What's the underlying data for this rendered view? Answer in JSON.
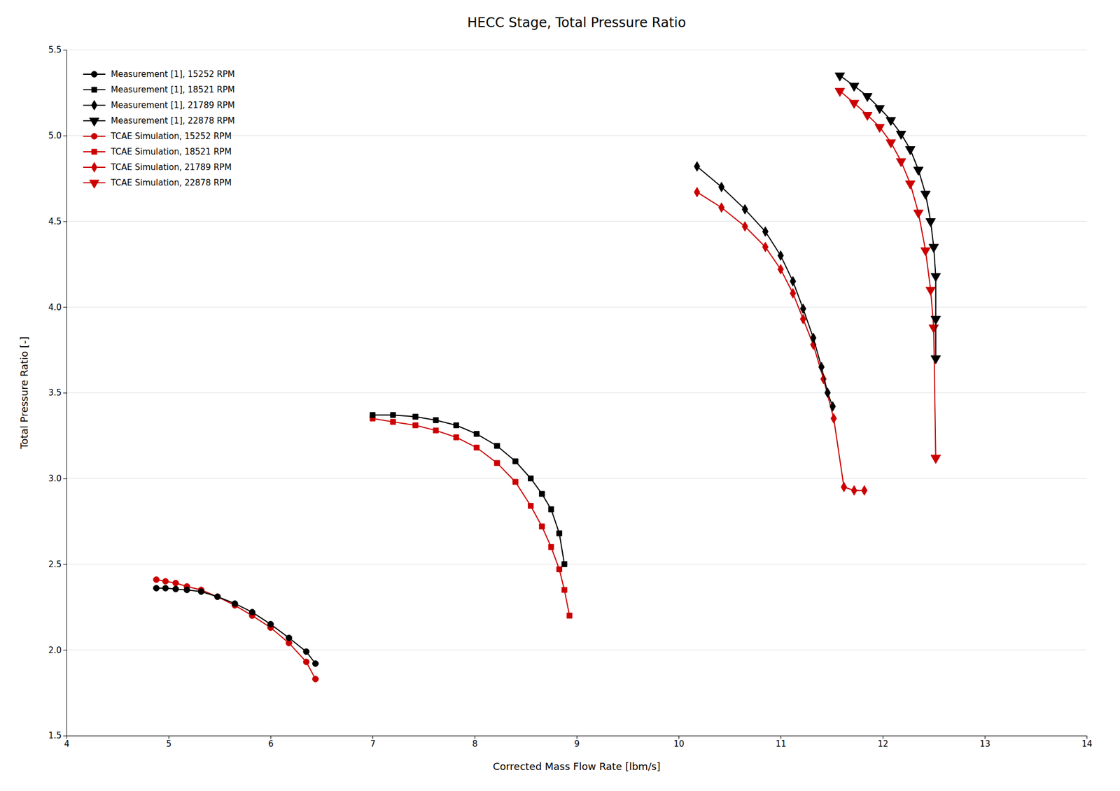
{
  "chart_data": {
    "type": "line",
    "title": "HECC Stage, Total Pressure Ratio",
    "x_label": "Corrected Mass Flow Rate [lbm/s]",
    "y_label": "Total Pressure Ratio [-]",
    "xlim": [
      4,
      14
    ],
    "ylim": [
      1.5,
      5.5
    ],
    "xticks": [
      4,
      5,
      6,
      7,
      8,
      9,
      10,
      11,
      12,
      13,
      14
    ],
    "yticks": [
      1.5,
      {
        "value": 2.0,
        "label": "2.0"
      },
      2.5,
      {
        "value": 3.0,
        "label": "3.0"
      },
      3.5,
      {
        "value": 4.0,
        "label": "4.0"
      },
      4.5,
      {
        "value": 5.0,
        "label": "5.0"
      },
      5.5
    ],
    "grid": "y",
    "legend": "upper left",
    "series": [
      {
        "name": "Measurement [1], 15252 RPM",
        "color": "#000000",
        "marker": "circle",
        "x": [
          4.88,
          4.97,
          5.07,
          5.18,
          5.32,
          5.48,
          5.65,
          5.82,
          6.0,
          6.18,
          6.35,
          6.44
        ],
        "values": [
          2.36,
          2.36,
          2.355,
          2.35,
          2.34,
          2.31,
          2.27,
          2.22,
          2.15,
          2.07,
          1.99,
          1.92
        ]
      },
      {
        "name": "Measurement [1], 18521 RPM",
        "color": "#000000",
        "marker": "square",
        "x": [
          7.0,
          7.2,
          7.42,
          7.62,
          7.82,
          8.02,
          8.22,
          8.4,
          8.55,
          8.66,
          8.75,
          8.83,
          8.88
        ],
        "values": [
          3.37,
          3.37,
          3.36,
          3.34,
          3.31,
          3.26,
          3.19,
          3.1,
          3.0,
          2.91,
          2.82,
          2.68,
          2.5
        ]
      },
      {
        "name": "Measurement [1], 21789 RPM",
        "color": "#000000",
        "marker": "diamond",
        "x": [
          10.18,
          10.42,
          10.65,
          10.85,
          11.0,
          11.12,
          11.22,
          11.32,
          11.4,
          11.46,
          11.51
        ],
        "values": [
          4.82,
          4.7,
          4.57,
          4.44,
          4.3,
          4.15,
          3.99,
          3.82,
          3.65,
          3.5,
          3.42
        ]
      },
      {
        "name": "Measurement [1], 22878 RPM",
        "color": "#000000",
        "marker": "triangle-down",
        "x": [
          11.58,
          11.72,
          11.85,
          11.97,
          12.08,
          12.18,
          12.27,
          12.35,
          12.42,
          12.47,
          12.5,
          12.52,
          12.52,
          12.52
        ],
        "values": [
          5.35,
          5.29,
          5.23,
          5.16,
          5.09,
          5.01,
          4.92,
          4.8,
          4.66,
          4.5,
          4.35,
          4.18,
          3.93,
          3.7
        ]
      },
      {
        "name": "TCAE Simulation, 15252 RPM",
        "color": "#cc0000",
        "marker": "circle",
        "x": [
          4.88,
          4.97,
          5.07,
          5.18,
          5.32,
          5.48,
          5.65,
          5.82,
          6.0,
          6.18,
          6.35,
          6.44
        ],
        "values": [
          2.41,
          2.4,
          2.39,
          2.37,
          2.35,
          2.31,
          2.26,
          2.2,
          2.13,
          2.04,
          1.93,
          1.83
        ]
      },
      {
        "name": "TCAE Simulation, 18521 RPM",
        "color": "#cc0000",
        "marker": "square",
        "x": [
          7.0,
          7.2,
          7.42,
          7.62,
          7.82,
          8.02,
          8.22,
          8.4,
          8.55,
          8.66,
          8.75,
          8.83,
          8.88,
          8.93
        ],
        "values": [
          3.35,
          3.33,
          3.31,
          3.28,
          3.24,
          3.18,
          3.09,
          2.98,
          2.84,
          2.72,
          2.6,
          2.47,
          2.35,
          2.2
        ]
      },
      {
        "name": "TCAE Simulation, 21789 RPM",
        "color": "#cc0000",
        "marker": "diamond",
        "x": [
          10.18,
          10.42,
          10.65,
          10.85,
          11.0,
          11.12,
          11.22,
          11.32,
          11.42,
          11.52,
          11.62,
          11.72,
          11.82
        ],
        "values": [
          4.67,
          4.58,
          4.47,
          4.35,
          4.22,
          4.08,
          3.93,
          3.78,
          3.58,
          3.35,
          2.95,
          2.93,
          2.93
        ]
      },
      {
        "name": "TCAE Simulation, 22878 RPM",
        "color": "#cc0000",
        "marker": "triangle-down",
        "x": [
          11.58,
          11.72,
          11.85,
          11.97,
          12.08,
          12.18,
          12.27,
          12.35,
          12.42,
          12.47,
          12.5,
          12.52,
          12.52
        ],
        "values": [
          5.26,
          5.19,
          5.12,
          5.05,
          4.96,
          4.85,
          4.72,
          4.55,
          4.33,
          4.1,
          3.88,
          3.12,
          3.12
        ]
      }
    ]
  }
}
